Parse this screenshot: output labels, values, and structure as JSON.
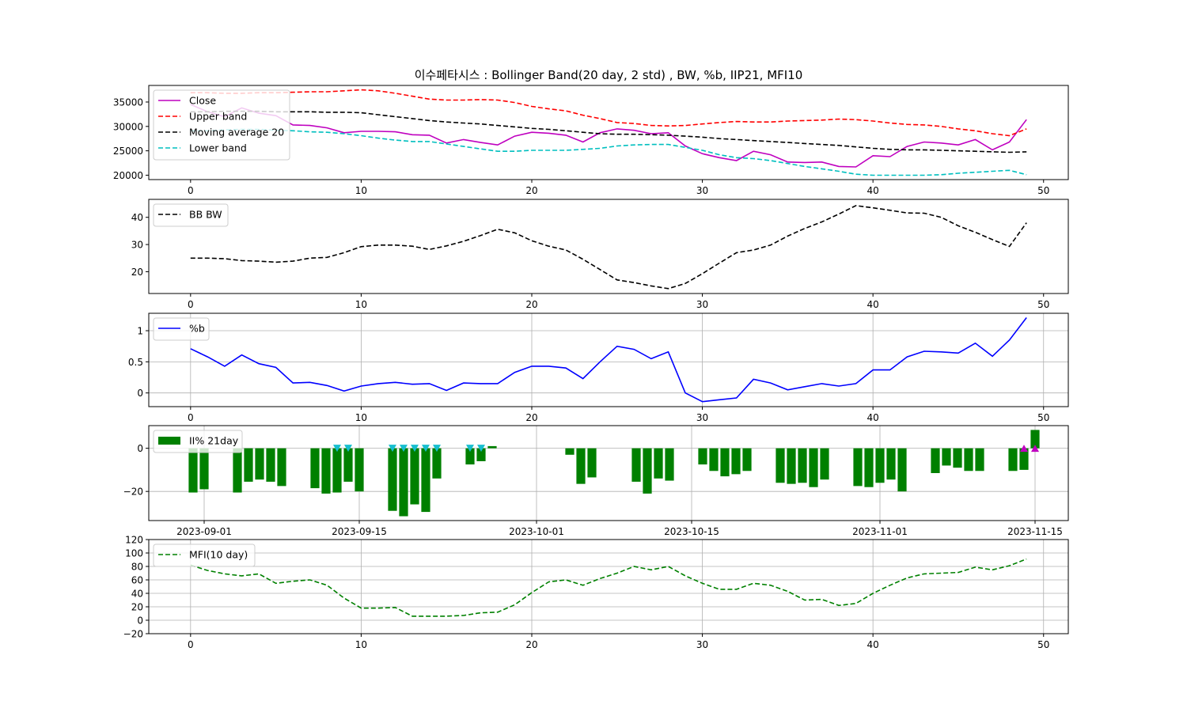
{
  "figure_title": "이수페타시스 : Bollinger Band(20 day, 2 std) , BW, %b, IIP21, MFI10",
  "chart_data": [
    {
      "type": "line",
      "panel": "price",
      "x": [
        0,
        1,
        2,
        3,
        4,
        5,
        6,
        7,
        8,
        9,
        10,
        11,
        12,
        13,
        14,
        15,
        16,
        17,
        18,
        19,
        20,
        21,
        22,
        23,
        24,
        25,
        26,
        27,
        28,
        29,
        30,
        31,
        32,
        33,
        34,
        35,
        36,
        37,
        38,
        39,
        40,
        41,
        42,
        43,
        44,
        45,
        46,
        47,
        48,
        49
      ],
      "xticks": [
        0,
        10,
        20,
        30,
        40,
        50
      ],
      "xlim": [
        -2.45,
        51.45
      ],
      "yticks": [
        20000,
        25000,
        30000,
        35000
      ],
      "ylim": [
        19100,
        38400
      ],
      "grid": false,
      "legend_position": "upper-left",
      "series": [
        {
          "name": "Close",
          "color": "#bf00bf",
          "dash": "solid",
          "values": [
            34500,
            33000,
            32000,
            33800,
            32700,
            32200,
            30300,
            30200,
            29700,
            28700,
            29000,
            29000,
            28900,
            28300,
            28200,
            26600,
            27300,
            26700,
            26200,
            28000,
            28800,
            28600,
            28200,
            26800,
            28700,
            29500,
            29200,
            28500,
            28700,
            26000,
            24400,
            23600,
            23000,
            24900,
            24200,
            22700,
            22600,
            22700,
            21800,
            21700,
            24000,
            23800,
            25900,
            26800,
            26600,
            26200,
            27300,
            25200,
            26800,
            31400
          ]
        },
        {
          "name": "Upper band",
          "color": "#ff0000",
          "dash": "dashed",
          "values": [
            36900,
            36900,
            36800,
            36800,
            36900,
            36900,
            37000,
            37100,
            37100,
            37300,
            37500,
            37300,
            36800,
            36200,
            35600,
            35400,
            35400,
            35500,
            35400,
            34900,
            34100,
            33600,
            33200,
            32300,
            31600,
            30800,
            30600,
            30200,
            30100,
            30200,
            30500,
            30800,
            31000,
            30900,
            30900,
            31100,
            31200,
            31300,
            31500,
            31400,
            31100,
            30700,
            30400,
            30300,
            30000,
            29500,
            29100,
            28500,
            28100,
            29500
          ]
        },
        {
          "name": "Moving average 20",
          "color": "#000000",
          "dash": "dashed",
          "values": [
            33000,
            33000,
            33100,
            33100,
            33100,
            33000,
            33000,
            33000,
            32900,
            32900,
            32800,
            32400,
            32000,
            31600,
            31200,
            30900,
            30700,
            30500,
            30200,
            29900,
            29600,
            29400,
            29100,
            28800,
            28500,
            28400,
            28400,
            28300,
            28200,
            28000,
            27800,
            27500,
            27300,
            27100,
            26900,
            26700,
            26500,
            26300,
            26100,
            25800,
            25500,
            25300,
            25200,
            25200,
            25100,
            25000,
            24900,
            24800,
            24700,
            24800
          ]
        },
        {
          "name": "Lower band",
          "color": "#00bfbf",
          "dash": "dashed",
          "values": [
            29100,
            29100,
            29300,
            29400,
            29400,
            29200,
            29100,
            28900,
            28800,
            28500,
            28100,
            27600,
            27200,
            26900,
            26900,
            26400,
            25900,
            25400,
            24900,
            24900,
            25100,
            25100,
            25100,
            25300,
            25500,
            26000,
            26200,
            26300,
            26300,
            25700,
            25100,
            24200,
            23600,
            23400,
            23000,
            22400,
            21800,
            21300,
            20800,
            20200,
            20000,
            20000,
            20000,
            20000,
            20100,
            20400,
            20600,
            20800,
            21000,
            20100
          ]
        }
      ]
    },
    {
      "type": "line",
      "panel": "bandwidth",
      "x": [
        0,
        1,
        2,
        3,
        4,
        5,
        6,
        7,
        8,
        9,
        10,
        11,
        12,
        13,
        14,
        15,
        16,
        17,
        18,
        19,
        20,
        21,
        22,
        23,
        24,
        25,
        26,
        27,
        28,
        29,
        30,
        31,
        32,
        33,
        34,
        35,
        36,
        37,
        38,
        39,
        40,
        41,
        42,
        43,
        44,
        45,
        46,
        47,
        48,
        49
      ],
      "xticks": [
        0,
        10,
        20,
        30,
        40,
        50
      ],
      "xlim": [
        -2.45,
        51.45
      ],
      "yticks": [
        20,
        30,
        40
      ],
      "ylim": [
        12.0,
        46.6
      ],
      "grid": false,
      "legend_position": "upper-left",
      "series": [
        {
          "name": "BB BW",
          "color": "#000000",
          "dash": "dashed",
          "values": [
            25,
            25,
            24.8,
            24.1,
            23.9,
            23.5,
            23.9,
            25,
            25.3,
            27,
            29.2,
            29.8,
            29.8,
            29.4,
            28.2,
            29.5,
            31.2,
            33.3,
            35.6,
            34.3,
            31.4,
            29.4,
            28,
            24.6,
            20.8,
            17,
            16,
            14.8,
            13.8,
            15.7,
            19.3,
            23.2,
            27,
            28,
            29.8,
            33.1,
            35.9,
            38.3,
            41.2,
            44.3,
            43.5,
            42.6,
            41.6,
            41.5,
            40,
            36.9,
            34.5,
            31.8,
            29.3,
            38
          ]
        }
      ]
    },
    {
      "type": "line",
      "panel": "percent_b",
      "x": [
        0,
        1,
        2,
        3,
        4,
        5,
        6,
        7,
        8,
        9,
        10,
        11,
        12,
        13,
        14,
        15,
        16,
        17,
        18,
        19,
        20,
        21,
        22,
        23,
        24,
        25,
        26,
        27,
        28,
        29,
        30,
        31,
        32,
        33,
        34,
        35,
        36,
        37,
        38,
        39,
        40,
        41,
        42,
        43,
        44,
        45,
        46,
        47,
        48,
        49
      ],
      "xticks": [
        0,
        10,
        20,
        30,
        40,
        50
      ],
      "xlim": [
        -2.45,
        51.45
      ],
      "yticks": [
        0.0,
        0.5,
        1.0
      ],
      "ylim": [
        -0.22,
        1.28
      ],
      "grid": true,
      "legend_position": "upper-left",
      "series": [
        {
          "name": "%b",
          "color": "#0000ff",
          "dash": "solid",
          "values": [
            0.71,
            0.58,
            0.43,
            0.61,
            0.47,
            0.41,
            0.16,
            0.17,
            0.12,
            0.03,
            0.11,
            0.15,
            0.17,
            0.14,
            0.15,
            0.04,
            0.16,
            0.15,
            0.15,
            0.33,
            0.43,
            0.43,
            0.4,
            0.23,
            0.5,
            0.75,
            0.7,
            0.55,
            0.66,
            0.0,
            -0.14,
            -0.11,
            -0.08,
            0.22,
            0.16,
            0.05,
            0.1,
            0.15,
            0.11,
            0.15,
            0.37,
            0.37,
            0.58,
            0.67,
            0.66,
            0.64,
            0.8,
            0.59,
            0.85,
            1.21
          ]
        }
      ]
    },
    {
      "type": "bar",
      "panel": "intraday_intensity",
      "x_axis": "dates",
      "xticks": [
        "2023-09-01",
        "2023-09-15",
        "2023-10-01",
        "2023-10-15",
        "2023-11-01",
        "2023-11-15"
      ],
      "xlim": [
        "2023-08-27",
        "2023-11-18"
      ],
      "yticks": [
        -20,
        0
      ],
      "ytick_labels": [
        "−20",
        "0"
      ],
      "ylim": [
        -33.5,
        10.5
      ],
      "grid": true,
      "legend_position": "upper-left",
      "series": [
        {
          "name": "II% 21day",
          "color": "#008000",
          "dates": [
            "2023-08-31",
            "2023-09-01",
            "2023-09-04",
            "2023-09-05",
            "2023-09-06",
            "2023-09-07",
            "2023-09-08",
            "2023-09-11",
            "2023-09-12",
            "2023-09-13",
            "2023-09-14",
            "2023-09-15",
            "2023-09-18",
            "2023-09-19",
            "2023-09-20",
            "2023-09-21",
            "2023-09-22",
            "2023-09-25",
            "2023-09-26",
            "2023-09-27",
            "2023-10-04",
            "2023-10-05",
            "2023-10-06",
            "2023-10-10",
            "2023-10-11",
            "2023-10-12",
            "2023-10-13",
            "2023-10-16",
            "2023-10-17",
            "2023-10-18",
            "2023-10-19",
            "2023-10-20",
            "2023-10-23",
            "2023-10-24",
            "2023-10-25",
            "2023-10-26",
            "2023-10-27",
            "2023-10-30",
            "2023-10-31",
            "2023-11-01",
            "2023-11-02",
            "2023-11-03",
            "2023-11-06",
            "2023-11-07",
            "2023-11-08",
            "2023-11-09",
            "2023-11-10",
            "2023-11-13",
            "2023-11-14",
            "2023-11-15"
          ],
          "values": [
            -20.5,
            -19,
            -20.5,
            -15.5,
            -14.5,
            -15.5,
            -17.5,
            -18.5,
            -21,
            -20.5,
            -15.5,
            -20,
            -29,
            -31.5,
            -26,
            -29.5,
            -14,
            -7.5,
            -6,
            1,
            -3,
            -16.5,
            -13.5,
            -15.5,
            -21,
            -14,
            -15,
            -7.5,
            -10.5,
            -13,
            -12,
            -10.5,
            -16,
            -16.5,
            -16,
            -18,
            -14.5,
            -17.5,
            -18,
            -16,
            -14.5,
            -20,
            -11.5,
            -8,
            -9,
            -10.5,
            -10.5,
            -10.5,
            -10,
            8.5
          ]
        }
      ],
      "markers": [
        {
          "kind": "sell",
          "shape": "triangle-down",
          "color": "#17becf",
          "dates": [
            "2023-09-13",
            "2023-09-14",
            "2023-09-18",
            "2023-09-19",
            "2023-09-20",
            "2023-09-21",
            "2023-09-22",
            "2023-09-25",
            "2023-09-26"
          ],
          "y": 0
        },
        {
          "kind": "buy",
          "shape": "triangle-up",
          "color": "#bf00bf",
          "dates": [
            "2023-11-14",
            "2023-11-15"
          ],
          "y": 0
        }
      ]
    },
    {
      "type": "line",
      "panel": "mfi",
      "x": [
        0,
        1,
        2,
        3,
        4,
        5,
        6,
        7,
        8,
        9,
        10,
        11,
        12,
        13,
        14,
        15,
        16,
        17,
        18,
        19,
        20,
        21,
        22,
        23,
        24,
        25,
        26,
        27,
        28,
        29,
        30,
        31,
        32,
        33,
        34,
        35,
        36,
        37,
        38,
        39,
        40,
        41,
        42,
        43,
        44,
        45,
        46,
        47,
        48,
        49
      ],
      "xticks": [
        0,
        10,
        20,
        30,
        40,
        50
      ],
      "xlim": [
        -2.45,
        51.45
      ],
      "yticks": [
        -20,
        0,
        20,
        40,
        60,
        80,
        100,
        120
      ],
      "ytick_labels": [
        "−20",
        "0",
        "20",
        "40",
        "60",
        "80",
        "100",
        "120"
      ],
      "ylim": [
        -20,
        120
      ],
      "grid": true,
      "legend_position": "upper-left",
      "series": [
        {
          "name": "MFI(10 day)",
          "color": "#008000",
          "dash": "dashed",
          "values": [
            82,
            74,
            69,
            66,
            69,
            55,
            58,
            60,
            52,
            33,
            18,
            18,
            19,
            6,
            6,
            6,
            7,
            11,
            12,
            23,
            41,
            57,
            60,
            52,
            62,
            70,
            80,
            75,
            80,
            66,
            55,
            46,
            46,
            55,
            52,
            43,
            30,
            31,
            22,
            25,
            40,
            52,
            63,
            69,
            70,
            71,
            79,
            75,
            81,
            91
          ]
        }
      ]
    }
  ]
}
